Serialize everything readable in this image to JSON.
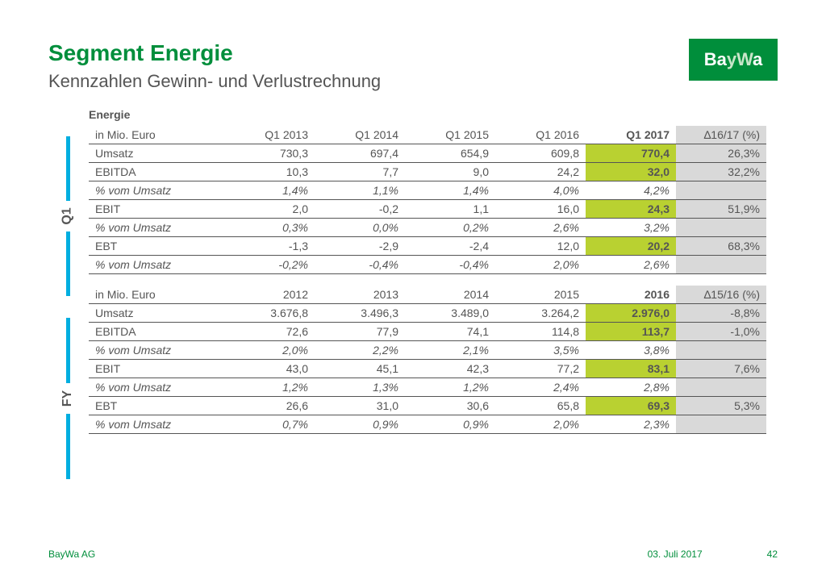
{
  "brand": {
    "name": "BayWa",
    "bg": "#008e3b",
    "accent": "#00aee0",
    "highlight": "#b9d131",
    "delta_bg": "#d9d9d9"
  },
  "title": "Segment Energie",
  "subtitle": "Kennzahlen Gewinn- und Verlustrechnung",
  "segment_label": "Energie",
  "q1": {
    "tab": "Q1",
    "unit": "in Mio. Euro",
    "headers": [
      "Q1 2013",
      "Q1 2014",
      "Q1 2015",
      "Q1 2016",
      "Q1 2017",
      "∆16/17 (%)"
    ],
    "rows": [
      {
        "label": "Umsatz",
        "v": [
          "730,3",
          "697,4",
          "654,9",
          "609,8",
          "770,4",
          "26,3%"
        ],
        "italic": false
      },
      {
        "label": "EBITDA",
        "v": [
          "10,3",
          "7,7",
          "9,0",
          "24,2",
          "32,0",
          "32,2%"
        ],
        "italic": false
      },
      {
        "label": "% vom Umsatz",
        "v": [
          "1,4%",
          "1,1%",
          "1,4%",
          "4,0%",
          "4,2%",
          ""
        ],
        "italic": true
      },
      {
        "label": "EBIT",
        "v": [
          "2,0",
          "-0,2",
          "1,1",
          "16,0",
          "24,3",
          "51,9%"
        ],
        "italic": false
      },
      {
        "label": "% vom Umsatz",
        "v": [
          "0,3%",
          "0,0%",
          "0,2%",
          "2,6%",
          "3,2%",
          ""
        ],
        "italic": true
      },
      {
        "label": "EBT",
        "v": [
          "-1,3",
          "-2,9",
          "-2,4",
          "12,0",
          "20,2",
          "68,3%"
        ],
        "italic": false
      },
      {
        "label": "% vom Umsatz",
        "v": [
          "-0,2%",
          "-0,4%",
          "-0,4%",
          "2,0%",
          "2,6%",
          ""
        ],
        "italic": true
      }
    ]
  },
  "fy": {
    "tab": "FY",
    "unit": "in Mio. Euro",
    "headers": [
      "2012",
      "2013",
      "2014",
      "2015",
      "2016",
      "∆15/16 (%)"
    ],
    "rows": [
      {
        "label": "Umsatz",
        "v": [
          "3.676,8",
          "3.496,3",
          "3.489,0",
          "3.264,2",
          "2.976,0",
          "-8,8%"
        ],
        "italic": false
      },
      {
        "label": "EBITDA",
        "v": [
          "72,6",
          "77,9",
          "74,1",
          "114,8",
          "113,7",
          "-1,0%"
        ],
        "italic": false
      },
      {
        "label": "% vom Umsatz",
        "v": [
          "2,0%",
          "2,2%",
          "2,1%",
          "3,5%",
          "3,8%",
          ""
        ],
        "italic": true
      },
      {
        "label": "EBIT",
        "v": [
          "43,0",
          "45,1",
          "42,3",
          "77,2",
          "83,1",
          "7,6%"
        ],
        "italic": false
      },
      {
        "label": "% vom Umsatz",
        "v": [
          "1,2%",
          "1,3%",
          "1,2%",
          "2,4%",
          "2,8%",
          ""
        ],
        "italic": true
      },
      {
        "label": "EBT",
        "v": [
          "26,6",
          "31,0",
          "30,6",
          "65,8",
          "69,3",
          "5,3%"
        ],
        "italic": false
      },
      {
        "label": "% vom Umsatz",
        "v": [
          "0,7%",
          "0,9%",
          "0,9%",
          "2,0%",
          "2,3%",
          ""
        ],
        "italic": true
      }
    ]
  },
  "footer": {
    "company": "BayWa AG",
    "date": "03. Juli 2017",
    "page": "42"
  }
}
